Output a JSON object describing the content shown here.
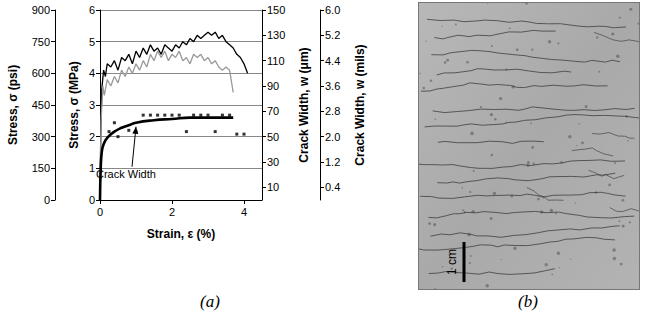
{
  "chart_data": {
    "type": "line",
    "xlabel": "Strain, ε (%)",
    "xlim": [
      0,
      4.5
    ],
    "xticks": [
      0,
      2,
      4
    ],
    "ylabel": "Stress, σ (MPa)",
    "ylim": [
      0,
      6
    ],
    "yticks": [
      0,
      1,
      2,
      3,
      4,
      5,
      6
    ],
    "y2label": "Crack Width, w (μm)",
    "y2lim": [
      0,
      150
    ],
    "y2ticks": [
      10,
      30,
      50,
      70,
      90,
      110,
      130,
      150
    ],
    "y3label": "Stress, σ (psi)",
    "y3lim": [
      0,
      900
    ],
    "y3ticks": [
      0,
      150,
      300,
      450,
      600,
      750,
      900
    ],
    "y4label": "Crack Width, w (mils)",
    "y4lim": [
      0,
      6
    ],
    "y4ticks": [
      0.4,
      1.2,
      {
        "value": 2,
        "label": "2.0"
      },
      2.8,
      3.6,
      4.4,
      5.2,
      {
        "value": 6,
        "label": "6.0"
      }
    ],
    "grid": true,
    "series": [
      {
        "type": "line",
        "color": "#000000",
        "line_style": "solid",
        "x": [
          0,
          0.02,
          0.05,
          0.1,
          0.15,
          0.2,
          0.3,
          0.4,
          0.5,
          0.6,
          0.7,
          0.8,
          0.9,
          1.0,
          1.1,
          1.2,
          1.3,
          1.4,
          1.5,
          1.6,
          1.7,
          1.8,
          1.9,
          2.0,
          2.1,
          2.2,
          2.3,
          2.4,
          2.5,
          2.6,
          2.7,
          2.8,
          2.9,
          3.0,
          3.1,
          3.2,
          3.3,
          3.4,
          3.5,
          3.6,
          3.7,
          3.8,
          3.9,
          4.0,
          4.1
        ],
        "values": [
          0,
          2,
          3.5,
          4.1,
          3.9,
          4.3,
          4.2,
          4.4,
          4.1,
          4.5,
          4.4,
          4.6,
          4.3,
          4.7,
          4.5,
          4.8,
          4.6,
          4.9,
          4.7,
          4.8,
          4.6,
          4.9,
          4.8,
          4.7,
          4.9,
          4.8,
          5.0,
          4.9,
          5.1,
          5.0,
          5.2,
          5.1,
          5.2,
          5.3,
          5.2,
          5.3,
          5.1,
          5.2,
          5.0,
          4.9,
          4.8,
          4.6,
          4.5,
          4.3,
          4.0
        ]
      },
      {
        "type": "line",
        "color": "#999999",
        "line_style": "solid",
        "x": [
          0,
          0.03,
          0.08,
          0.12,
          0.2,
          0.3,
          0.4,
          0.5,
          0.6,
          0.7,
          0.8,
          0.9,
          1.0,
          1.1,
          1.2,
          1.3,
          1.4,
          1.5,
          1.6,
          1.7,
          1.8,
          1.9,
          2.0,
          2.1,
          2.2,
          2.3,
          2.4,
          2.5,
          2.6,
          2.7,
          2.8,
          2.9,
          3.0,
          3.1,
          3.2,
          3.3,
          3.4,
          3.5,
          3.6,
          3.7
        ],
        "values": [
          0,
          2.5,
          3.6,
          3.3,
          3.8,
          3.6,
          3.9,
          3.7,
          4.1,
          3.9,
          4.2,
          4.0,
          4.3,
          4.1,
          4.4,
          4.2,
          4.6,
          4.4,
          4.7,
          4.5,
          4.7,
          4.4,
          4.6,
          4.5,
          4.7,
          4.4,
          4.5,
          4.3,
          4.6,
          4.5,
          4.6,
          4.4,
          4.5,
          4.3,
          4.4,
          4.2,
          4.1,
          4.2,
          4.1,
          3.4
        ]
      },
      {
        "type": "scatter",
        "color": "#000000",
        "marker": "square",
        "axis": "y2",
        "x": [
          0.25,
          0.4,
          0.5,
          0.8,
          1.0,
          1.2,
          1.4,
          1.6,
          1.8,
          2.0,
          2.2,
          2.4,
          2.6,
          2.8,
          3.0,
          3.2,
          3.4,
          3.6,
          3.8,
          4.0
        ],
        "values": [
          54,
          61,
          50,
          55,
          54,
          67,
          67,
          67,
          67,
          67,
          67,
          54,
          67,
          67,
          67,
          54,
          67,
          67,
          52,
          52
        ]
      },
      {
        "type": "line",
        "color": "#000000",
        "line_style": "solid",
        "axis": "y2",
        "x": [
          0,
          0.02,
          0.05,
          0.1,
          0.2,
          0.4,
          0.6,
          0.8,
          1.0,
          1.5,
          2.0,
          2.5,
          3.0,
          3.5,
          3.7
        ],
        "values": [
          0,
          25,
          38,
          44,
          49,
          54,
          57,
          59,
          61,
          63,
          64,
          65,
          65,
          65,
          65
        ]
      }
    ],
    "annotations": [
      {
        "text": "Crack Width",
        "x": 1.0,
        "y": 61,
        "axis": "y2"
      }
    ]
  },
  "panel_a": {
    "label": "(a)"
  },
  "panel_b": {
    "label": "(b)",
    "scale_bar": "1 cm"
  }
}
